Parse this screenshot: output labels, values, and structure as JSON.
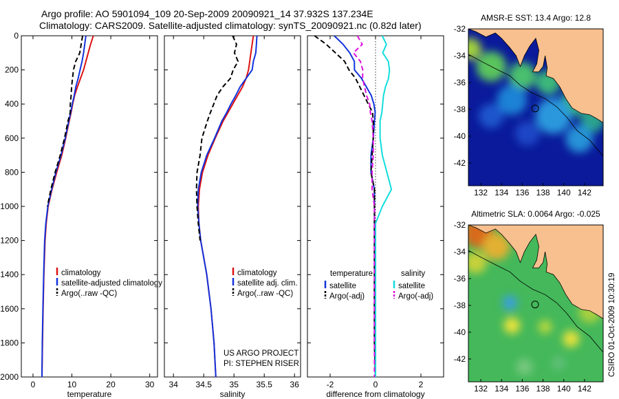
{
  "header": {
    "line1": "Argo profile: AO 5901094_109 20-Sep-2009 20090921_14 37.932S 137.234E",
    "line2": "Climatology: CARS2009. Satellite-adjusted climatology: synTS_20090921.nc (0.82d later)"
  },
  "side_label": "CSIRO 01-Oct-2009 10:30:19",
  "colors": {
    "climatology": "#dd1111",
    "satellite": "#1133dd",
    "argo": "#000000",
    "sal_satellite": "#11dddd",
    "sal_argo": "#dd11dd",
    "land": "#f8c08e"
  },
  "chart_data": [
    {
      "type": "line",
      "xlabel": "temperature",
      "ylabel": "",
      "xlim": [
        -3,
        32
      ],
      "ylim": [
        2000,
        0
      ],
      "xticks": [
        "0",
        "10",
        "20",
        "30"
      ],
      "yticks": [
        "0",
        "200",
        "400",
        "600",
        "800",
        "1000",
        "1200",
        "1400",
        "1600",
        "1800",
        "2000"
      ],
      "legend": [
        "climatology",
        "satellite-adjusted climatology",
        "Argo(..raw -QC)"
      ],
      "legend_position": "lower-middle",
      "depth": [
        0,
        50,
        100,
        150,
        200,
        250,
        300,
        350,
        400,
        450,
        500,
        600,
        700,
        800,
        900,
        1000,
        1100,
        1200,
        1400,
        1600,
        1800,
        2000
      ],
      "series": [
        {
          "name": "climatology",
          "values": [
            15.5,
            14.8,
            14.2,
            13.6,
            13.0,
            12.2,
            11.4,
            10.7,
            10.2,
            9.8,
            9.3,
            8.4,
            7.4,
            6.1,
            4.9,
            3.9,
            3.4,
            3.1,
            2.8,
            2.6,
            2.45,
            2.3
          ],
          "style": "solid"
        },
        {
          "name": "satellite-adjusted climatology",
          "values": [
            13.6,
            13.3,
            13.0,
            12.6,
            12.1,
            11.6,
            11.0,
            10.6,
            10.1,
            9.7,
            9.2,
            8.3,
            7.2,
            5.9,
            4.8,
            3.8,
            3.3,
            3.0,
            2.75,
            2.55,
            2.4,
            2.3
          ],
          "style": "solid"
        },
        {
          "name": "Argo(..raw -QC)",
          "values": [
            12.8,
            12.5,
            12.2,
            11.2,
            10.6,
            10.3,
            10.0,
            9.8,
            9.5,
            9.4,
            9.0,
            8.1,
            7.0,
            5.7,
            4.6,
            3.7,
            3.2,
            2.95,
            2.7,
            2.5,
            2.35,
            2.3
          ],
          "style": "dashed",
          "depth_max": 1000
        }
      ]
    },
    {
      "type": "line",
      "xlabel": "salinity",
      "xlim": [
        33.85,
        36.1
      ],
      "ylim": [
        2000,
        0
      ],
      "xticks": [
        "34",
        "34.5",
        "35",
        "35.5",
        "36"
      ],
      "legend": [
        "climatology",
        "satellite adj. clim.",
        "Argo(..raw -QC)"
      ],
      "legend_position": "lower-middle",
      "annotation": [
        "US ARGO PROJECT",
        "PI: STEPHEN RISER"
      ],
      "depth": [
        0,
        50,
        100,
        150,
        200,
        250,
        300,
        350,
        400,
        450,
        500,
        600,
        700,
        800,
        900,
        1000,
        1100,
        1200,
        1400,
        1600,
        1800,
        2000
      ],
      "series": [
        {
          "name": "climatology",
          "values": [
            35.32,
            35.3,
            35.28,
            35.26,
            35.24,
            35.2,
            35.14,
            35.06,
            34.98,
            34.9,
            34.82,
            34.69,
            34.57,
            34.48,
            34.43,
            34.41,
            34.42,
            34.45,
            34.55,
            34.62,
            34.67,
            34.7
          ],
          "style": "solid"
        },
        {
          "name": "satellite adj. clim.",
          "values": [
            35.38,
            35.37,
            35.36,
            35.32,
            35.3,
            35.2,
            35.1,
            35.03,
            34.95,
            34.88,
            34.8,
            34.68,
            34.55,
            34.46,
            34.41,
            34.4,
            34.42,
            34.45,
            34.55,
            34.62,
            34.67,
            34.7
          ],
          "style": "solid"
        },
        {
          "name": "Argo(..raw -QC)",
          "values": [
            34.98,
            35.05,
            35.02,
            35.08,
            35.0,
            34.95,
            34.82,
            34.72,
            34.66,
            34.6,
            34.56,
            34.47,
            34.44,
            34.39,
            34.38,
            34.39,
            34.41,
            34.44,
            34.52,
            34.58,
            34.64,
            34.68
          ],
          "style": "dashed",
          "depth_max": 1300
        }
      ]
    },
    {
      "type": "line",
      "xlabel": "difference from climatology",
      "xlim": [
        -3,
        3
      ],
      "ylim": [
        2000,
        0
      ],
      "xticks": [
        "-2",
        "0",
        "2"
      ],
      "legend": [
        "temperature",
        "satellite",
        "Argo(-adj)",
        "salinity",
        "satellite",
        "Argo(-adj)"
      ],
      "legend_position": "lower-middle",
      "zero_line": true,
      "depth": [
        0,
        50,
        100,
        150,
        200,
        250,
        300,
        350,
        400,
        450,
        500,
        600,
        700,
        800,
        900,
        1000,
        1100,
        1200,
        1400,
        1600,
        1800,
        2000
      ],
      "series": [
        {
          "name": "temperature satellite",
          "values": [
            -1.8,
            -1.4,
            -1.1,
            -0.9,
            -0.9,
            -0.6,
            -0.4,
            -0.2,
            -0.1,
            -0.05,
            -0.05,
            -0.1,
            -0.2,
            -0.2,
            -0.05,
            -0.05,
            -0.05,
            -0.05,
            -0.05,
            -0.05,
            -0.05,
            0.0
          ],
          "style": "solid"
        },
        {
          "name": "temperature Argo(-adj)",
          "values": [
            -2.7,
            -2.2,
            -1.8,
            -1.4,
            -1.2,
            -0.9,
            -0.7,
            -0.5,
            -0.3,
            -0.1,
            -0.1,
            -0.1,
            -0.15,
            -0.2,
            -0.05,
            -0.05,
            -0.05,
            -0.05,
            -0.05,
            -0.05,
            -0.05,
            0.0
          ],
          "style": "dashed"
        },
        {
          "name": "salinity satellite",
          "values": [
            0.3,
            0.5,
            0.35,
            0.6,
            0.65,
            0.6,
            0.45,
            0.35,
            0.3,
            0.25,
            0.2,
            0.2,
            0.3,
            0.5,
            0.7,
            0.3,
            0.0,
            0.0,
            0.0,
            0.0,
            0.0,
            0.0
          ],
          "style": "solid"
        },
        {
          "name": "salinity Argo(-adj)",
          "values": [
            -0.8,
            -0.6,
            -1.0,
            -0.7,
            -0.6,
            -0.6,
            -0.5,
            -0.4,
            -0.25,
            -0.2,
            -0.15,
            -0.1,
            -0.1,
            -0.15,
            -0.15,
            -0.05,
            -0.05,
            -0.05,
            -0.05,
            -0.05,
            -0.05,
            -0.05
          ],
          "style": "dashed"
        }
      ]
    },
    {
      "type": "heatmap",
      "title": "AMSR-E SST: 13.4  Argo: 12.8",
      "xlim": [
        130.8,
        143.8
      ],
      "ylim": [
        -43.7,
        -32
      ],
      "xticks": [
        "132",
        "134",
        "136",
        "138",
        "140",
        "142"
      ],
      "yticks": [
        "-32",
        "-34",
        "-36",
        "-38",
        "-40",
        "-42"
      ],
      "float_marker": {
        "lon": 137.234,
        "lat": -37.932
      }
    },
    {
      "type": "heatmap",
      "title": "Altimetric SLA: 0.0064  Argo: -0.025",
      "xlim": [
        130.8,
        143.8
      ],
      "ylim": [
        -43.7,
        -32
      ],
      "xticks": [
        "132",
        "134",
        "136",
        "138",
        "140",
        "142"
      ],
      "yticks": [
        "-32",
        "-34",
        "-36",
        "-38",
        "-40",
        "-42"
      ],
      "float_marker": {
        "lon": 137.234,
        "lat": -37.932
      }
    }
  ]
}
